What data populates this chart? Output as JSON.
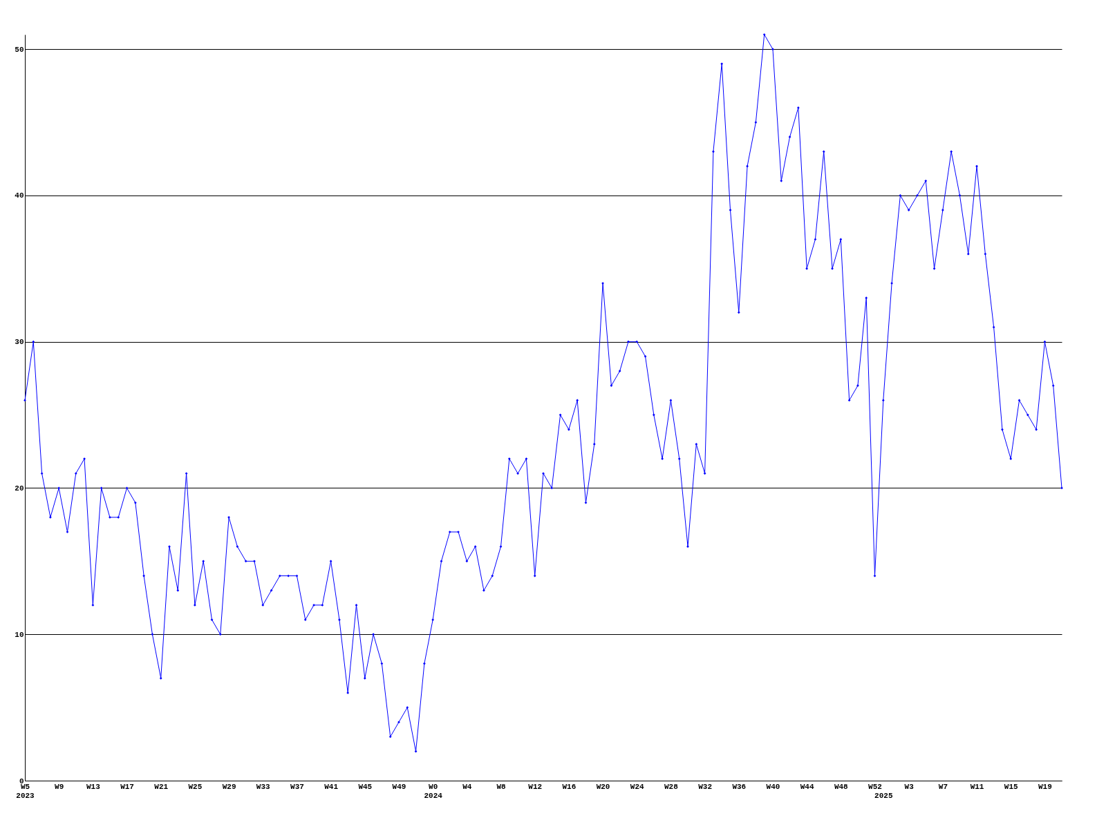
{
  "chart_data": {
    "type": "line",
    "categories": [
      "W5\n2023",
      null,
      null,
      null,
      "W9",
      null,
      null,
      null,
      "W13",
      null,
      null,
      null,
      "W17",
      null,
      null,
      null,
      "W21",
      null,
      null,
      null,
      "W25",
      null,
      null,
      null,
      "W29",
      null,
      null,
      null,
      "W33",
      null,
      null,
      null,
      "W37",
      null,
      null,
      null,
      "W41",
      null,
      null,
      null,
      "W45",
      null,
      null,
      null,
      "W49",
      null,
      null,
      null,
      "W0\n2024",
      null,
      null,
      null,
      "W4",
      null,
      null,
      null,
      "W8",
      null,
      null,
      null,
      "W12",
      null,
      null,
      null,
      "W16",
      null,
      null,
      null,
      "W20",
      null,
      null,
      null,
      "W24",
      null,
      null,
      null,
      "W28",
      null,
      null,
      null,
      "W32",
      null,
      null,
      null,
      "W36",
      null,
      null,
      null,
      "W40",
      null,
      null,
      null,
      "W44",
      null,
      null,
      null,
      "W48",
      null,
      null,
      null,
      "W52",
      "\n2025",
      null,
      null,
      "W3",
      null,
      null,
      null,
      "W7",
      null,
      null,
      null,
      "W11",
      null,
      null,
      null,
      "W15",
      null,
      null,
      null,
      "W19",
      null,
      null
    ],
    "series": [
      {
        "color": "#0000ff",
        "values": [
          26,
          30,
          21,
          18,
          20,
          17,
          21,
          22,
          12,
          20,
          18,
          18,
          20,
          19,
          14,
          10,
          7,
          16,
          13,
          21,
          12,
          15,
          11,
          10,
          18,
          16,
          15,
          15,
          12,
          13,
          14,
          14,
          14,
          11,
          12,
          12,
          15,
          11,
          6,
          12,
          7,
          10,
          8,
          3,
          4,
          5,
          2,
          8,
          11,
          15,
          17,
          17,
          15,
          16,
          13,
          14,
          16,
          22,
          21,
          22,
          14,
          21,
          20,
          25,
          24,
          26,
          19,
          23,
          34,
          27,
          28,
          30,
          30,
          29,
          25,
          22,
          26,
          22,
          16,
          23,
          21,
          43,
          49,
          39,
          32,
          42,
          45,
          51,
          50,
          41,
          44,
          46,
          35,
          37,
          43,
          35,
          37,
          26,
          27,
          33,
          14,
          26,
          34,
          40,
          39,
          40,
          41,
          35,
          39,
          43,
          40,
          36,
          42,
          36,
          31,
          24,
          22,
          26,
          25,
          24,
          30,
          27,
          20
        ]
      }
    ],
    "ylim": [
      0,
      51
    ],
    "yticks": [
      0,
      10,
      20,
      30,
      40,
      50
    ],
    "grid": "y",
    "marker": "diamond",
    "line_style": "solid"
  }
}
